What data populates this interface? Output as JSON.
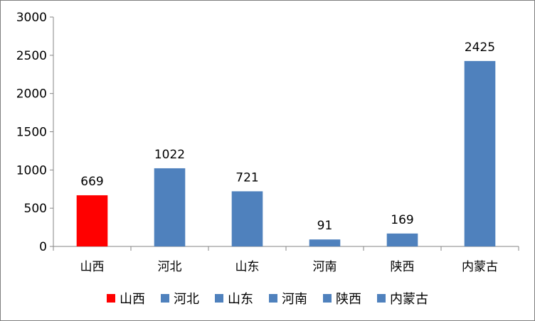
{
  "chart_data": {
    "type": "bar",
    "title": "",
    "xlabel": "",
    "ylabel": "",
    "categories": [
      "山西",
      "河北",
      "山东",
      "河南",
      "陕西",
      "内蒙古"
    ],
    "values": [
      669,
      1022,
      721,
      91,
      169,
      2425
    ],
    "bar_colors": [
      "#ff0000",
      "#4f81bd",
      "#4f81bd",
      "#4f81bd",
      "#4f81bd",
      "#4f81bd"
    ],
    "ylim": [
      0,
      3000
    ],
    "yticks": [
      0,
      500,
      1000,
      1500,
      2000,
      2500,
      3000
    ],
    "grid": false,
    "legend": {
      "position": "bottom",
      "entries": [
        {
          "label": "山西",
          "color": "#ff0000"
        },
        {
          "label": "河北",
          "color": "#4f81bd"
        },
        {
          "label": "山东",
          "color": "#4f81bd"
        },
        {
          "label": "河南",
          "color": "#4f81bd"
        },
        {
          "label": "陕西",
          "color": "#4f81bd"
        },
        {
          "label": "内蒙古",
          "color": "#4f81bd"
        }
      ]
    }
  }
}
